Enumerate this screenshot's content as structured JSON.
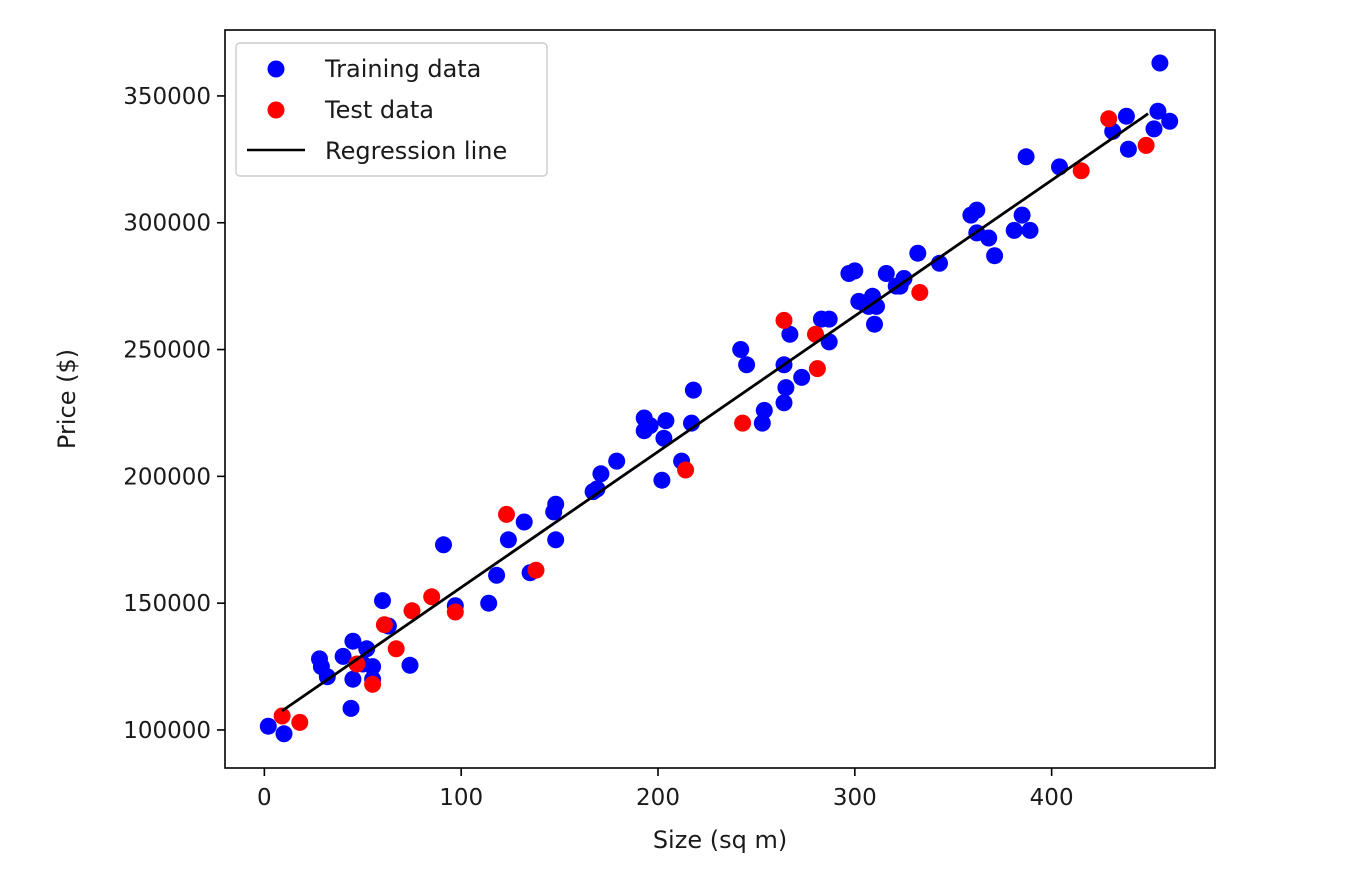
{
  "chart_data": {
    "type": "scatter",
    "title": "",
    "xlabel": "Size (sq m)",
    "ylabel": "Price ($)",
    "xlim": [
      -20,
      483
    ],
    "ylim": [
      85000,
      376000
    ],
    "xticks": [
      0,
      100,
      200,
      300,
      400
    ],
    "yticks": [
      100000,
      150000,
      200000,
      250000,
      300000,
      350000
    ],
    "grid": false,
    "legend_position": "top-left",
    "series": [
      {
        "name": "Training data",
        "kind": "scatter",
        "color": "#0000ff",
        "points": [
          [
            2,
            101500
          ],
          [
            10,
            98500
          ],
          [
            28,
            128000
          ],
          [
            29,
            125000
          ],
          [
            32,
            121000
          ],
          [
            40,
            129000
          ],
          [
            44,
            108500
          ],
          [
            45,
            120000
          ],
          [
            45,
            135000
          ],
          [
            50,
            126000
          ],
          [
            52,
            132000
          ],
          [
            55,
            125000
          ],
          [
            55,
            120000
          ],
          [
            60,
            151000
          ],
          [
            63,
            141000
          ],
          [
            74,
            125500
          ],
          [
            91,
            173000
          ],
          [
            97,
            149000
          ],
          [
            114,
            150000
          ],
          [
            118,
            161000
          ],
          [
            124,
            175000
          ],
          [
            132,
            182000
          ],
          [
            135,
            162000
          ],
          [
            147,
            186000
          ],
          [
            148,
            189000
          ],
          [
            148,
            175000
          ],
          [
            167,
            194000
          ],
          [
            169,
            195000
          ],
          [
            171,
            201000
          ],
          [
            179,
            206000
          ],
          [
            193,
            223000
          ],
          [
            193,
            218000
          ],
          [
            196,
            220000
          ],
          [
            202,
            198500
          ],
          [
            203,
            215000
          ],
          [
            204,
            222000
          ],
          [
            212,
            206000
          ],
          [
            217,
            221000
          ],
          [
            218,
            234000
          ],
          [
            242,
            250000
          ],
          [
            245,
            244000
          ],
          [
            253,
            221000
          ],
          [
            254,
            226000
          ],
          [
            264,
            229000
          ],
          [
            265,
            235000
          ],
          [
            264,
            244000
          ],
          [
            267,
            256000
          ],
          [
            273,
            239000
          ],
          [
            283,
            262000
          ],
          [
            287,
            262000
          ],
          [
            287,
            253000
          ],
          [
            297,
            280000
          ],
          [
            300,
            281000
          ],
          [
            302,
            269000
          ],
          [
            305,
            268000
          ],
          [
            307,
            267000
          ],
          [
            309,
            271000
          ],
          [
            310,
            260000
          ],
          [
            311,
            267000
          ],
          [
            316,
            280000
          ],
          [
            321,
            275000
          ],
          [
            323,
            275000
          ],
          [
            325,
            278000
          ],
          [
            332,
            288000
          ],
          [
            343,
            284000
          ],
          [
            359,
            303000
          ],
          [
            362,
            305000
          ],
          [
            362,
            296000
          ],
          [
            368,
            294000
          ],
          [
            371,
            287000
          ],
          [
            381,
            297000
          ],
          [
            385,
            303000
          ],
          [
            387,
            326000
          ],
          [
            389,
            297000
          ],
          [
            404,
            322000
          ],
          [
            431,
            336000
          ],
          [
            438,
            342000
          ],
          [
            439,
            329000
          ],
          [
            452,
            337000
          ],
          [
            454,
            344000
          ],
          [
            455,
            363000
          ],
          [
            460,
            340000
          ]
        ]
      },
      {
        "name": "Test data",
        "kind": "scatter",
        "color": "#ff0000",
        "points": [
          [
            9,
            105500
          ],
          [
            18,
            103000
          ],
          [
            47,
            126000
          ],
          [
            55,
            118000
          ],
          [
            61,
            141500
          ],
          [
            67,
            132000
          ],
          [
            75,
            147000
          ],
          [
            85,
            152500
          ],
          [
            97,
            146500
          ],
          [
            123,
            185000
          ],
          [
            138,
            163000
          ],
          [
            214,
            202500
          ],
          [
            243,
            221000
          ],
          [
            264,
            261500
          ],
          [
            280,
            256000
          ],
          [
            281,
            242500
          ],
          [
            333,
            272500
          ],
          [
            415,
            320500
          ],
          [
            429,
            341000
          ],
          [
            448,
            330500
          ]
        ]
      },
      {
        "name": "Regression line",
        "kind": "line",
        "color": "#000000",
        "points": [
          [
            9,
            107500
          ],
          [
            449,
            343000
          ]
        ]
      }
    ]
  }
}
